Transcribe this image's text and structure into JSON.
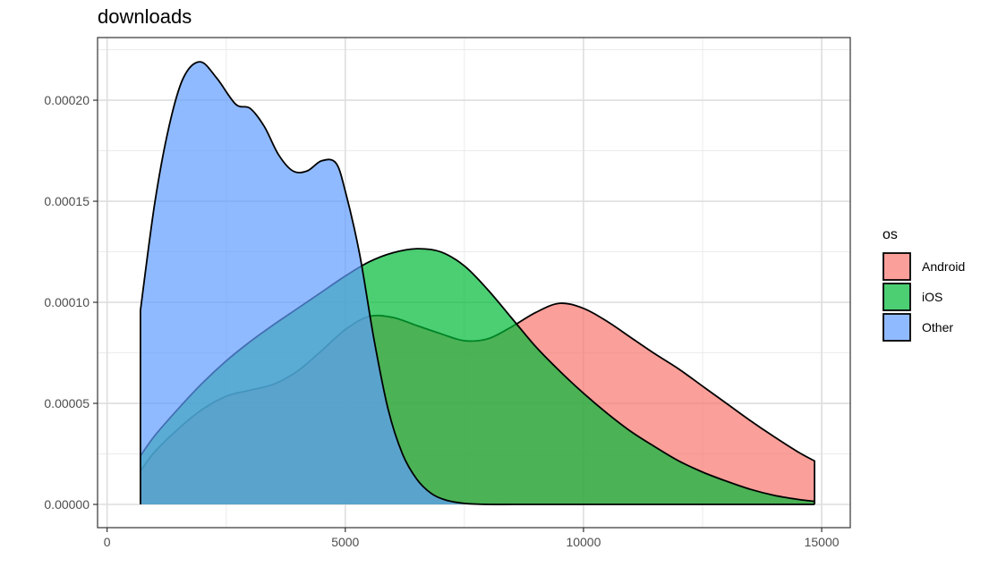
{
  "chart_data": {
    "type": "area",
    "title": "downloads",
    "xlabel": "",
    "ylabel": "",
    "xlim": [
      -200,
      15600
    ],
    "ylim": [
      -1.15e-05,
      0.000231
    ],
    "x_ticks": [
      0,
      5000,
      10000,
      15000
    ],
    "x_tick_labels": [
      "0",
      "5000",
      "10000",
      "15000"
    ],
    "y_ticks": [
      0,
      5e-05,
      0.0001,
      0.00015,
      0.0002
    ],
    "y_tick_labels": [
      "0.00000",
      "0.00005",
      "0.00010",
      "0.00015",
      "0.00020"
    ],
    "grid": true,
    "legend": {
      "title": "os",
      "position": "right"
    },
    "series": [
      {
        "name": "Android",
        "color": "#F8766D",
        "x": [
          700,
          1000,
          1500,
          2000,
          2500,
          3000,
          3500,
          4000,
          4500,
          5000,
          5500,
          6000,
          6500,
          7000,
          7500,
          8000,
          8500,
          9000,
          9500,
          10000,
          10500,
          11000,
          11500,
          12000,
          12500,
          13000,
          13500,
          14000,
          14500,
          14850
        ],
        "y": [
          1.65e-05,
          2.6e-05,
          3.75e-05,
          4.7e-05,
          5.35e-05,
          5.65e-05,
          5.95e-05,
          6.6e-05,
          7.6e-05,
          8.65e-05,
          9.3e-05,
          9.25e-05,
          8.85e-05,
          8.45e-05,
          8.1e-05,
          8.2e-05,
          8.8e-05,
          9.5e-05,
          9.95e-05,
          9.7e-05,
          9.05e-05,
          8.25e-05,
          7.45e-05,
          6.7e-05,
          5.85e-05,
          5e-05,
          4.15e-05,
          3.35e-05,
          2.6e-05,
          2.15e-05
        ]
      },
      {
        "name": "iOS",
        "color": "#00BA38",
        "x": [
          700,
          1000,
          1500,
          2000,
          2500,
          3000,
          3500,
          4000,
          4500,
          5000,
          5500,
          6000,
          6500,
          7000,
          7500,
          8000,
          8500,
          9000,
          9500,
          10000,
          10500,
          11000,
          11500,
          12000,
          12500,
          13000,
          13500,
          14000,
          14500,
          14850
        ],
        "y": [
          2.4e-05,
          3.4e-05,
          4.75e-05,
          6e-05,
          7.1e-05,
          8.05e-05,
          8.9e-05,
          9.7e-05,
          0.000105,
          0.000113,
          0.00012,
          0.0001245,
          0.0001265,
          0.000125,
          0.000118,
          0.000106,
          9.2e-05,
          7.8e-05,
          6.6e-05,
          5.5e-05,
          4.5e-05,
          3.6e-05,
          2.85e-05,
          2.15e-05,
          1.6e-05,
          1.15e-05,
          7.5e-06,
          4.5e-06,
          2.5e-06,
          1.5e-06
        ]
      },
      {
        "name": "Other",
        "color": "#619CFF",
        "x": [
          700,
          1000,
          1300,
          1600,
          1950,
          2300,
          2700,
          3000,
          3300,
          3600,
          3900,
          4200,
          4500,
          4800,
          5000,
          5300,
          5600,
          5900,
          6200,
          6500,
          6800,
          7100,
          7500,
          8000,
          8500,
          9000,
          10000,
          12000,
          14850
        ],
        "y": [
          9.6e-05,
          0.000149,
          0.000187,
          0.000211,
          0.000219,
          0.000211,
          0.000198,
          0.000196,
          0.000187,
          0.000173,
          0.000165,
          0.000165,
          0.00017,
          0.000169,
          0.000155,
          0.000124,
          8.2e-05,
          4.7e-05,
          2.5e-05,
          1.25e-05,
          5.5e-06,
          2.2e-06,
          5e-07,
          0.0,
          0.0,
          0.0,
          0.0,
          0.0,
          0.0
        ]
      }
    ]
  }
}
